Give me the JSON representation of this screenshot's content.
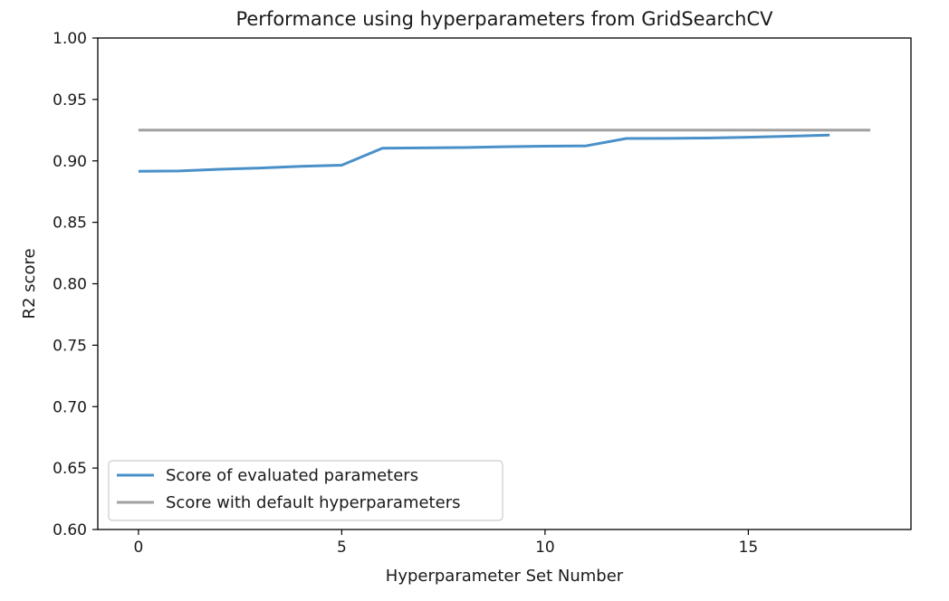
{
  "chart_data": {
    "type": "line",
    "title": "Performance using hyperparameters from GridSearchCV",
    "xlabel": "Hyperparameter Set Number",
    "ylabel": "R2 score",
    "xlim": [
      -1,
      19
    ],
    "ylim": [
      0.6,
      1.0
    ],
    "xticks": [
      0,
      5,
      10,
      15
    ],
    "xtick_labels": [
      "0",
      "5",
      "10",
      "15"
    ],
    "yticks": [
      0.6,
      0.65,
      0.7,
      0.75,
      0.8,
      0.85,
      0.9,
      0.95,
      1.0
    ],
    "ytick_labels": [
      "0.60",
      "0.65",
      "0.70",
      "0.75",
      "0.80",
      "0.85",
      "0.90",
      "0.95",
      "1.00"
    ],
    "grid": false,
    "legend_position": "lower-left",
    "series": [
      {
        "name": "Score of evaluated parameters",
        "color": "#4a90c8",
        "x": [
          0,
          1,
          2,
          3,
          4,
          5,
          6,
          7,
          8,
          9,
          10,
          11,
          12,
          13,
          14,
          15,
          16,
          17
        ],
        "values": [
          0.8915,
          0.8918,
          0.8932,
          0.8942,
          0.8956,
          0.8965,
          0.9103,
          0.9106,
          0.9109,
          0.9115,
          0.912,
          0.9122,
          0.9182,
          0.9183,
          0.9186,
          0.9193,
          0.9201,
          0.921
        ]
      },
      {
        "name": "Score with default hyperparameters",
        "color": "#a0a0a0",
        "x": [
          0,
          18
        ],
        "values": [
          0.925,
          0.925
        ]
      }
    ]
  }
}
